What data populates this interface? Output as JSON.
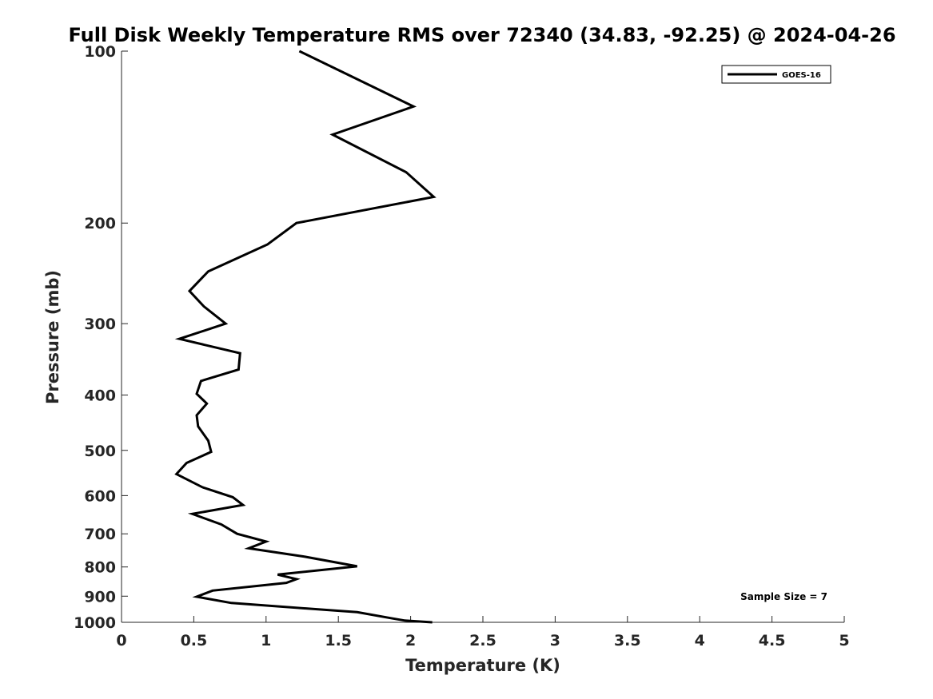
{
  "chart_data": {
    "type": "line",
    "title": "Full Disk Weekly Temperature RMS over 72340 (34.83, -92.25) @ 2024-04-26",
    "xlabel": "Temperature (K)",
    "ylabel": "Pressure (mb)",
    "xlim": [
      0,
      5
    ],
    "ylim": [
      1000,
      100
    ],
    "yscale": "log",
    "y_reversed": true,
    "xticks": [
      0,
      0.5,
      1,
      1.5,
      2,
      2.5,
      3,
      3.5,
      4,
      4.5,
      5
    ],
    "xtick_labels": [
      "0",
      "0.5",
      "1",
      "1.5",
      "2",
      "2.5",
      "3",
      "3.5",
      "4",
      "4.5",
      "5"
    ],
    "yticks": [
      100,
      200,
      300,
      400,
      500,
      600,
      700,
      800,
      900,
      1000
    ],
    "ytick_labels": [
      "100",
      "200",
      "300",
      "400",
      "500",
      "600",
      "700",
      "800",
      "900",
      "1000"
    ],
    "grid": false,
    "legend_position": "top-right",
    "annotation": "Sample Size = 7",
    "line_color": "#000000",
    "series": [
      {
        "name": "GOES-16",
        "x": [
          1.23,
          2.02,
          1.46,
          1.97,
          2.16,
          1.21,
          1.01,
          0.6,
          0.47,
          0.57,
          0.72,
          0.4,
          0.82,
          0.81,
          0.55,
          0.52,
          0.59,
          0.52,
          0.53,
          0.6,
          0.62,
          0.45,
          0.38,
          0.56,
          0.77,
          0.84,
          0.49,
          0.69,
          0.8,
          1.0,
          0.88,
          1.26,
          1.63,
          1.08,
          1.21,
          1.14,
          0.63,
          0.52,
          0.76,
          1.63,
          1.86,
          1.96,
          2.15
        ],
        "y": [
          100,
          125,
          140,
          163,
          180,
          200,
          218,
          243,
          263,
          280,
          300,
          319,
          338,
          361,
          378,
          398,
          414,
          434,
          454,
          481,
          503,
          526,
          550,
          580,
          604,
          623,
          646,
          674,
          700,
          722,
          742,
          767,
          798,
          825,
          840,
          853,
          880,
          902,
          925,
          960,
          983,
          993,
          1000
        ]
      }
    ]
  }
}
